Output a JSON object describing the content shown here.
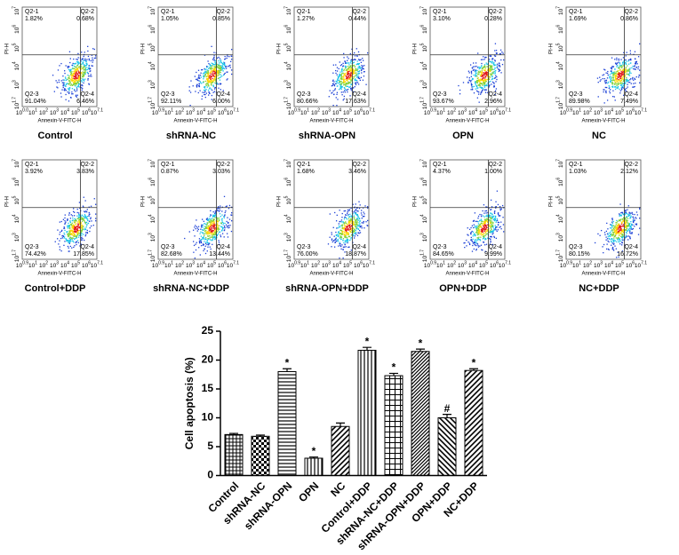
{
  "flow_axes": {
    "x_label": "Annexin-V-FITC-H",
    "y_label": "PI-H",
    "tick_base": "10",
    "quadrant_names": [
      "Q2-1",
      "Q2-2",
      "Q2-3",
      "Q2-4"
    ],
    "y_exponents": [
      "7",
      "6",
      "5",
      "4",
      "3",
      "1.7"
    ]
  },
  "panels": [
    {
      "title": "Control",
      "quadrants": [
        "1.82%",
        "0.68%",
        "91.04%",
        "6.46%"
      ],
      "x_exponents": [
        "0.0",
        "1",
        "2",
        "3",
        "4",
        "5",
        "6",
        "7.1"
      ]
    },
    {
      "title": "shRNA-NC",
      "quadrants": [
        "1.05%",
        "0.85%",
        "92.11%",
        "6.00%"
      ],
      "x_exponents": [
        "0.9",
        "1",
        "2",
        "3",
        "4",
        "5",
        "6",
        "7.1"
      ]
    },
    {
      "title": "shRNA-OPN",
      "quadrants": [
        "1.27%",
        "0.44%",
        "80.66%",
        "17.63%"
      ],
      "x_exponents": [
        "0.9",
        "1",
        "2",
        "3",
        "4",
        "5",
        "6",
        "7.1"
      ]
    },
    {
      "title": "OPN",
      "quadrants": [
        "3.10%",
        "0.28%",
        "93.67%",
        "2.96%"
      ],
      "x_exponents": [
        "0.9",
        "1",
        "2",
        "3",
        "4",
        "5",
        "6",
        "7.1"
      ]
    },
    {
      "title": "NC",
      "quadrants": [
        "1.69%",
        "0.86%",
        "89.98%",
        "7.49%"
      ],
      "x_exponents": [
        "0.9",
        "1",
        "2",
        "3",
        "4",
        "5",
        "6",
        "7.1"
      ]
    },
    {
      "title": "Control+DDP",
      "quadrants": [
        "3.92%",
        "3.83%",
        "74.42%",
        "17.85%"
      ],
      "x_exponents": [
        "0.9",
        "1",
        "2",
        "3",
        "4",
        "5",
        "6",
        "7.1"
      ]
    },
    {
      "title": "shRNA-NC+DDP",
      "quadrants": [
        "0.87%",
        "3.03%",
        "82.68%",
        "13.44%"
      ],
      "x_exponents": [
        "0.9",
        "1",
        "2",
        "3",
        "4",
        "5",
        "6",
        "7.1"
      ]
    },
    {
      "title": "shRNA-OPN+DDP",
      "quadrants": [
        "1.68%",
        "3.46%",
        "76.00%",
        "18.87%"
      ],
      "x_exponents": [
        "0.9",
        "1",
        "2",
        "3",
        "4",
        "5",
        "6",
        "7.1"
      ]
    },
    {
      "title": "OPN+DDP",
      "quadrants": [
        "4.37%",
        "1.00%",
        "84.65%",
        "9.99%"
      ],
      "x_exponents": [
        "0.9",
        "1",
        "2",
        "3",
        "4",
        "5",
        "6",
        "7.1"
      ]
    },
    {
      "title": "NC+DDP",
      "quadrants": [
        "1.03%",
        "2.12%",
        "80.15%",
        "16.72%"
      ],
      "x_exponents": [
        "0.9",
        "1",
        "2",
        "3",
        "4",
        "5",
        "6",
        "7.1"
      ]
    }
  ],
  "chart_data": {
    "type": "bar",
    "y_label": "Cell apoptosis (%)",
    "categories": [
      "Control",
      "shRNA-NC",
      "shRNA-OPN",
      "OPN",
      "NC",
      "Control+DDP",
      "shRNA-NC+DDP",
      "shRNA-OPN+DDP",
      "OPN+DDP",
      "NC+DDP"
    ],
    "values": [
      7.1,
      6.8,
      18.0,
      3.0,
      8.5,
      21.7,
      17.3,
      21.5,
      10.0,
      18.2
    ],
    "errors": [
      0.2,
      0.2,
      0.5,
      0.2,
      0.6,
      0.5,
      0.4,
      0.4,
      0.6,
      0.3
    ],
    "annotations": [
      null,
      null,
      "*",
      "*",
      null,
      "*",
      "*",
      "*",
      "#",
      "*"
    ],
    "patterns": [
      "crosshatch",
      "checker",
      "hlines",
      "vlines",
      "diag",
      "vlines",
      "grid",
      "diag-dense",
      "diag-back",
      "diag"
    ],
    "color": "#000000",
    "ylim": [
      0,
      25
    ],
    "yticks": [
      0,
      5,
      10,
      15,
      20,
      25
    ]
  }
}
